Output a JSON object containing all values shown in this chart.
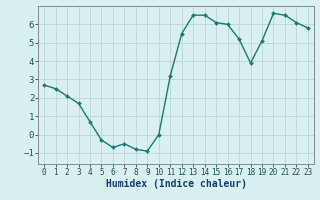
{
  "x": [
    0,
    1,
    2,
    3,
    4,
    5,
    6,
    7,
    8,
    9,
    10,
    11,
    12,
    13,
    14,
    15,
    16,
    17,
    18,
    19,
    20,
    21,
    22,
    23
  ],
  "y": [
    2.7,
    2.5,
    2.1,
    1.7,
    0.7,
    -0.3,
    -0.7,
    -0.5,
    -0.8,
    -0.9,
    0.0,
    3.2,
    5.5,
    6.5,
    6.5,
    6.1,
    6.0,
    5.2,
    3.9,
    5.1,
    6.6,
    6.5,
    6.1,
    5.8
  ],
  "line_color": "#1a7a6e",
  "marker": "D",
  "marker_size": 2.0,
  "line_width": 1.0,
  "xlabel": "Humidex (Indice chaleur)",
  "xlabel_fontsize": 7,
  "bg_color": "#d8f0f0",
  "grid_color": "#c0d8d8",
  "axis_color": "#888888",
  "xlim": [
    -0.5,
    23.5
  ],
  "ylim": [
    -1.6,
    7.0
  ],
  "yticks": [
    -1,
    0,
    1,
    2,
    3,
    4,
    5,
    6
  ],
  "xticks": [
    0,
    1,
    2,
    3,
    4,
    5,
    6,
    7,
    8,
    9,
    10,
    11,
    12,
    13,
    14,
    15,
    16,
    17,
    18,
    19,
    20,
    21,
    22,
    23
  ],
  "tick_fontsize": 5.5,
  "ytick_fontsize": 6.5
}
